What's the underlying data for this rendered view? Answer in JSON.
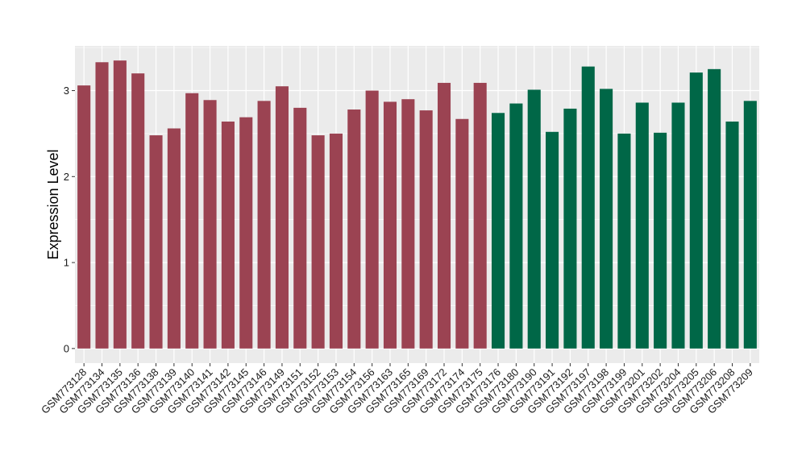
{
  "chart_data": {
    "type": "bar",
    "title": "",
    "xlabel": "",
    "ylabel": "Expression Level",
    "ylim": [
      -0.17,
      3.52
    ],
    "yticks": [
      0,
      1,
      2,
      3
    ],
    "grid": true,
    "legend": "none",
    "categories": [
      "GSM773128",
      "GSM773134",
      "GSM773135",
      "GSM773136",
      "GSM773138",
      "GSM773139",
      "GSM773140",
      "GSM773141",
      "GSM773142",
      "GSM773145",
      "GSM773146",
      "GSM773149",
      "GSM773151",
      "GSM773152",
      "GSM773153",
      "GSM773154",
      "GSM773156",
      "GSM773163",
      "GSM773165",
      "GSM773169",
      "GSM773172",
      "GSM773174",
      "GSM773175",
      "GSM773176",
      "GSM773180",
      "GSM773190",
      "GSM773191",
      "GSM773192",
      "GSM773197",
      "GSM773198",
      "GSM773199",
      "GSM773201",
      "GSM773202",
      "GSM773204",
      "GSM773205",
      "GSM773206",
      "GSM773208",
      "GSM773209"
    ],
    "values": [
      3.06,
      3.33,
      3.35,
      3.2,
      2.48,
      2.56,
      2.97,
      2.89,
      2.64,
      2.69,
      2.88,
      3.05,
      2.8,
      2.48,
      2.5,
      2.78,
      3.0,
      2.87,
      2.9,
      2.77,
      3.09,
      2.67,
      3.09,
      2.74,
      2.85,
      3.01,
      2.52,
      2.79,
      3.28,
      3.02,
      2.5,
      2.86,
      2.51,
      2.86,
      3.21,
      3.25,
      2.64,
      2.88
    ],
    "groups": [
      0,
      0,
      0,
      0,
      0,
      0,
      0,
      0,
      0,
      0,
      0,
      0,
      0,
      0,
      0,
      0,
      0,
      0,
      0,
      0,
      0,
      0,
      0,
      1,
      1,
      1,
      1,
      1,
      1,
      1,
      1,
      1,
      1,
      1,
      1,
      1,
      1,
      1
    ],
    "group_colors": [
      "#9b4352",
      "#006747"
    ],
    "panel_background": "#ebebeb",
    "grid_color": "#ffffff"
  }
}
